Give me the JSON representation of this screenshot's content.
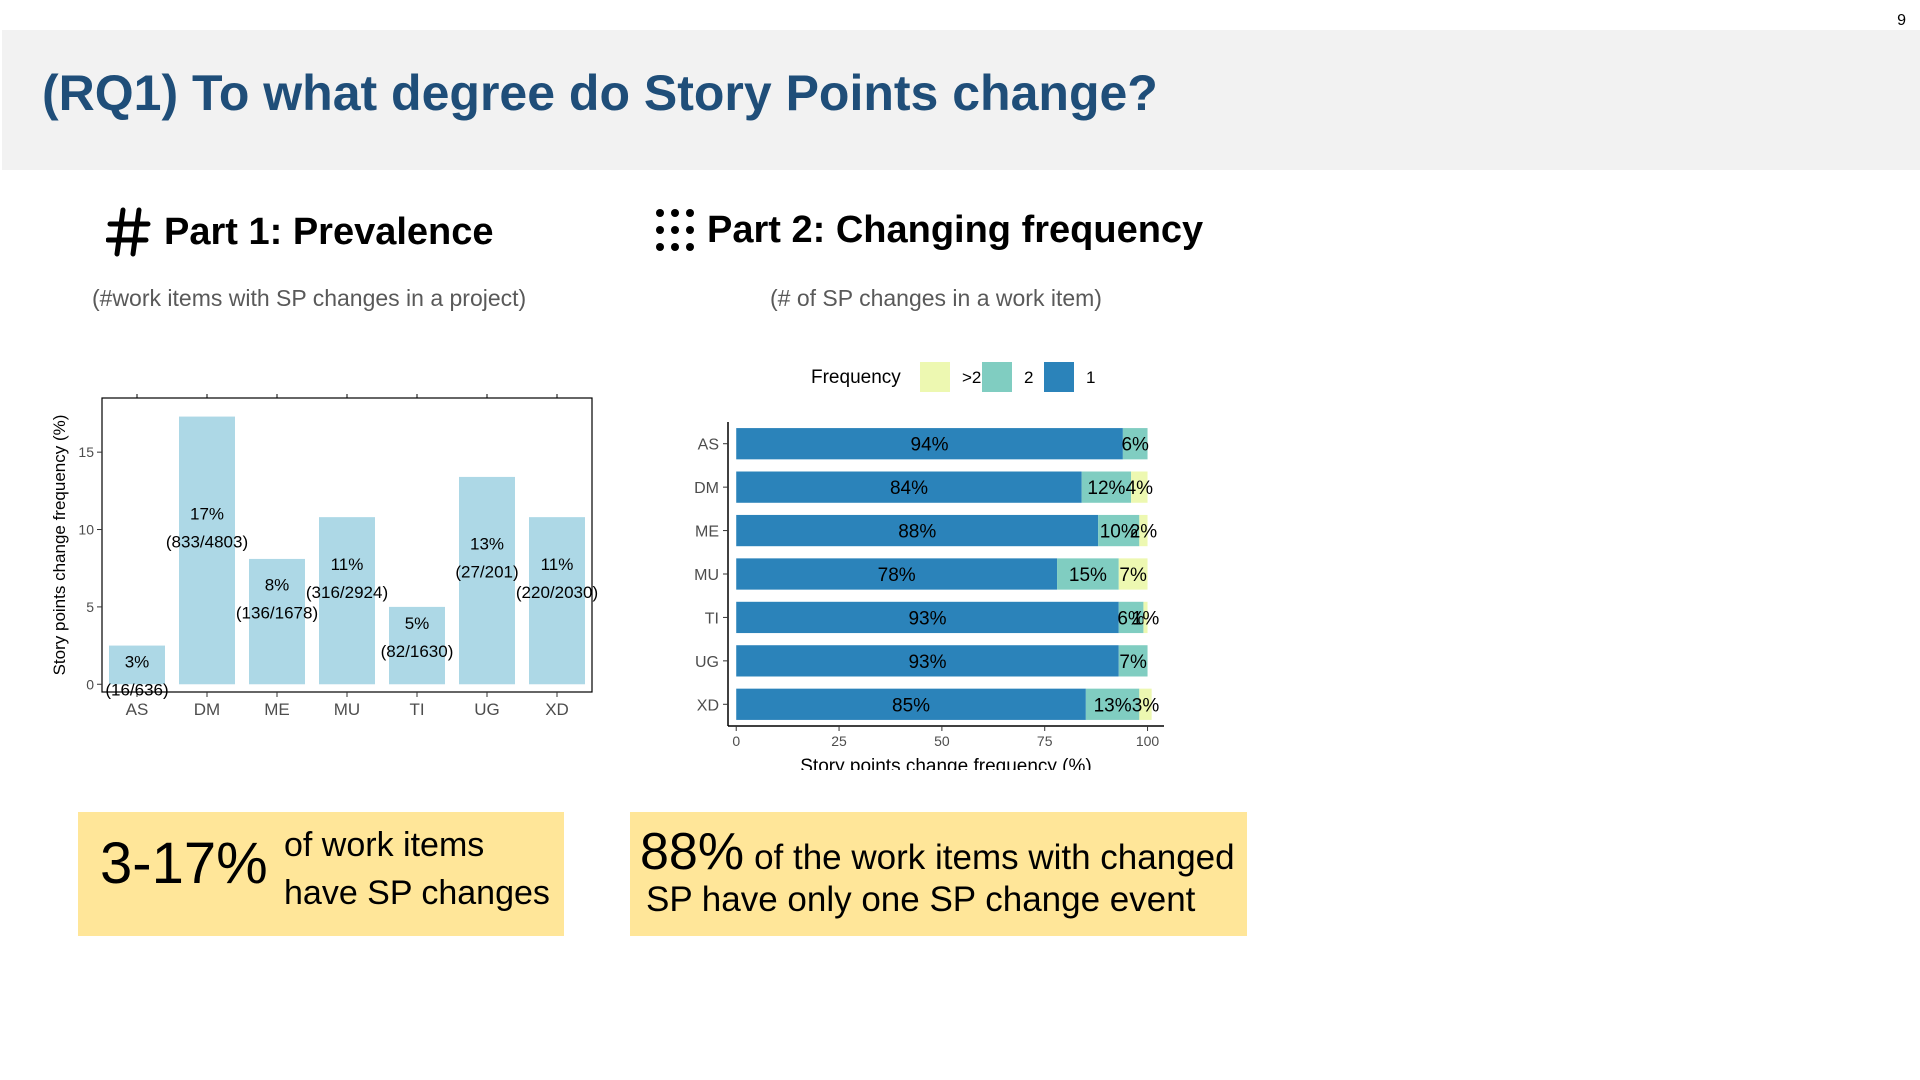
{
  "page_number": "9",
  "title": "(RQ1) To what degree do Story Points change?",
  "part1": {
    "heading": "Part 1: Prevalence",
    "icon": "hash-icon",
    "subtitle": "(#work items with SP changes in a project)"
  },
  "part2": {
    "heading": "Part 2: Changing frequency",
    "icon": "dot-grid-icon",
    "subtitle": "(# of SP changes in a work item)"
  },
  "callout1": {
    "big": "3-17%",
    "line1": "of work items",
    "line2": "have SP changes",
    "color": "#ffe699"
  },
  "callout2": {
    "big": "88%",
    "line1_rest": "of the work items with changed",
    "line2": "SP have only one SP change event",
    "color": "#ffe699"
  },
  "chart_data": [
    {
      "type": "bar",
      "categories": [
        "AS",
        "DM",
        "ME",
        "MU",
        "TI",
        "UG",
        "XD"
      ],
      "values": [
        2.5,
        17.3,
        8.1,
        10.8,
        5.0,
        13.4,
        10.8
      ],
      "labels": [
        "3%",
        "17%",
        "8%",
        "11%",
        "5%",
        "13%",
        "11%"
      ],
      "counts": [
        "(16/636)",
        "(833/4803)",
        "(136/1678)",
        "(316/2924)",
        "(82/1630)",
        "(27/201)",
        "(220/2030)"
      ],
      "ylabel": "Story points change frequency (%)",
      "xlabel": "",
      "ylim": [
        -0.5,
        18.5
      ],
      "yticks": [
        0,
        5,
        10,
        15
      ],
      "color": "#add8e6"
    },
    {
      "type": "bar",
      "orientation": "horizontal",
      "stacked": true,
      "categories": [
        "AS",
        "DM",
        "ME",
        "MU",
        "TI",
        "UG",
        "XD"
      ],
      "legend_title": "Frequency",
      "legend_position": "top",
      "legend_order": [
        ">2",
        "2",
        "1"
      ],
      "series": [
        {
          "name": "1",
          "color": "#2b83ba",
          "values": [
            94,
            84,
            88,
            78,
            93,
            93,
            85
          ],
          "labels": [
            "94%",
            "84%",
            "88%",
            "78%",
            "93%",
            "93%",
            "85%"
          ]
        },
        {
          "name": "2",
          "color": "#80cdc1",
          "values": [
            6,
            12,
            10,
            15,
            6,
            7,
            13
          ],
          "labels": [
            "6%",
            "12%",
            "10%",
            "15%",
            "6%",
            "7%",
            "13%"
          ]
        },
        {
          "name": ">2",
          "color": "#edf8b1",
          "values": [
            0,
            4,
            2,
            7,
            1,
            0,
            3
          ],
          "labels": [
            "",
            "4%",
            "2%",
            "7%",
            "1%",
            "",
            "3%"
          ]
        }
      ],
      "xlabel": "Story points change frequency (%)",
      "xlim": [
        -2,
        104
      ],
      "xticks": [
        0,
        25,
        50,
        75,
        100
      ]
    }
  ]
}
